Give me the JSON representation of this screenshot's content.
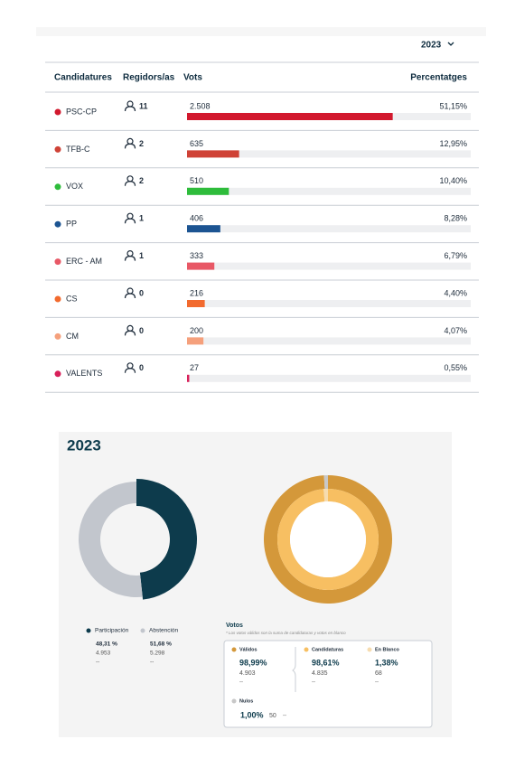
{
  "header": {
    "year_selector": "2023"
  },
  "table": {
    "headers": [
      "Candidatures",
      "Regidors/as",
      "Vots",
      "Percentatges"
    ],
    "rows": [
      {
        "name": "PSC-CP",
        "color": "#d2192e",
        "seats": 11,
        "votes": 2508,
        "votes_label": "2.508",
        "percent_label": "51,15%"
      },
      {
        "name": "TFB-C",
        "color": "#cf4236",
        "seats": 2,
        "votes": 635,
        "votes_label": "635",
        "percent_label": "12,95%"
      },
      {
        "name": "VOX",
        "color": "#2ebc3b",
        "seats": 2,
        "votes": 510,
        "votes_label": "510",
        "percent_label": "10,40%"
      },
      {
        "name": "PP",
        "color": "#1c5492",
        "seats": 1,
        "votes": 406,
        "votes_label": "406",
        "percent_label": "8,28%"
      },
      {
        "name": "ERC - AM",
        "color": "#e85866",
        "seats": 1,
        "votes": 333,
        "votes_label": "333",
        "percent_label": "6,79%"
      },
      {
        "name": "CS",
        "color": "#f26a2e",
        "seats": 0,
        "votes": 216,
        "votes_label": "216",
        "percent_label": "4,40%"
      },
      {
        "name": "CM",
        "color": "#f5a07c",
        "seats": 0,
        "votes": 200,
        "votes_label": "200",
        "percent_label": "4,07%"
      },
      {
        "name": "VALENTS",
        "color": "#d8205a",
        "seats": 0,
        "votes": 27,
        "votes_label": "27",
        "percent_label": "0,55%"
      }
    ]
  },
  "summary": {
    "title": "2023",
    "participation": [
      {
        "name": "Participación",
        "color": "#0d3b4c",
        "value": 48.31,
        "value_label": "48,31 %",
        "count": "4.953",
        "extra": "--"
      },
      {
        "name": "Abstención",
        "color": "#c2c6cd",
        "value": 51.68,
        "value_label": "51,68 %",
        "count": "5.298",
        "extra": "--"
      }
    ],
    "votes": {
      "title": "Votos",
      "note": "* Los votos válidos son la suma de candidaturas y votos en blanco",
      "outer_ring": [
        {
          "name": "Válidos",
          "color": "#d4983a",
          "value": 98.99,
          "value_label": "98,99%",
          "count": "4.903",
          "extra": "--"
        },
        {
          "name": "Nulos",
          "color": "#c8c8c8",
          "value": 1.0,
          "value_label": "1,00%",
          "count": "50",
          "extra": "--"
        }
      ],
      "inner_ring": [
        {
          "name": "Candidaturas",
          "color": "#f7bf62",
          "value": 98.61,
          "value_label": "98,61%",
          "count": "4.835",
          "extra": "--"
        },
        {
          "name": "En Blanco",
          "color": "#f6dcb0",
          "value": 1.38,
          "value_label": "1,38%",
          "count": "68",
          "extra": "--"
        }
      ]
    }
  }
}
